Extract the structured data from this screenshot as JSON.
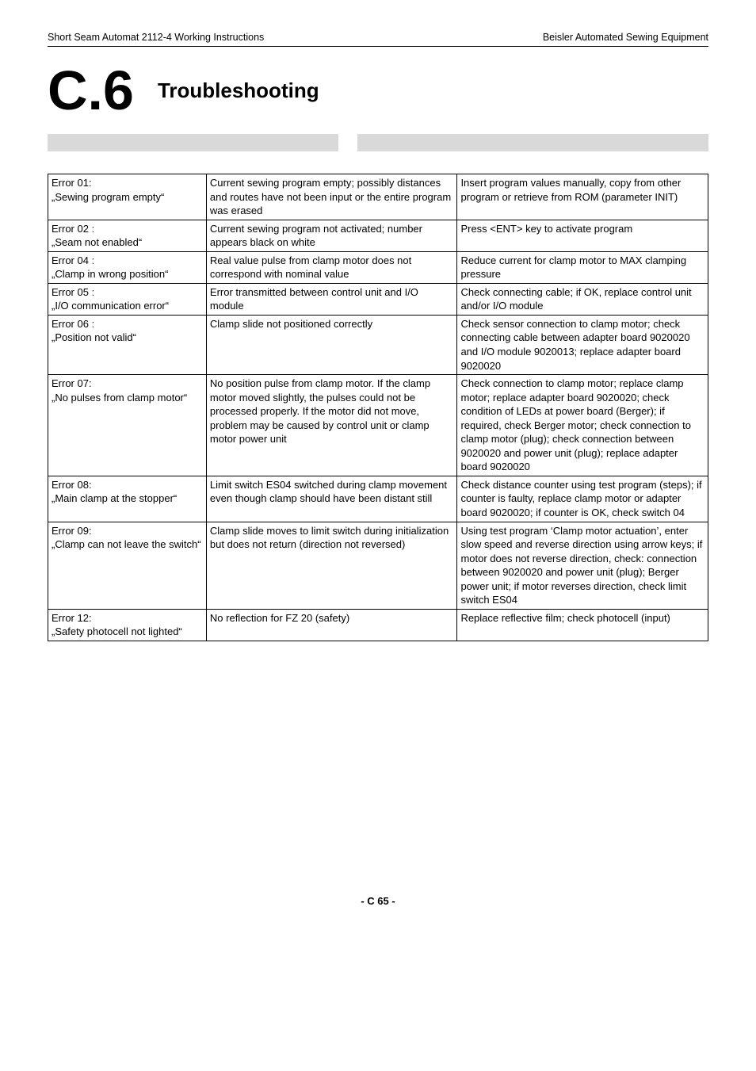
{
  "header": {
    "left": "Short Seam Automat 2112-4 Working Instructions",
    "right": "Beisler Automated Sewing Equipment"
  },
  "chapter": {
    "number": "C.6",
    "title": "Troubleshooting"
  },
  "table": {
    "col_widths_pct": [
      24,
      38,
      38
    ],
    "border_color": "#000000",
    "font_size_pt": 10,
    "rows": [
      {
        "error": "Error 01:\n„Sewing program empty“",
        "cause": "Current sewing program empty; possibly distances and routes have not been input or the entire program was erased",
        "remedy": "Insert program values manually, copy from other program or retrieve from ROM (parameter INIT)"
      },
      {
        "error": "Error 02 :\n„Seam not enabled“",
        "cause": "Current sewing program not activated; number appears black on white",
        "remedy": "Press <ENT> key to activate program"
      },
      {
        "error": "Error 04 :\n„Clamp in wrong position“",
        "cause": "Real value pulse from clamp motor does not correspond with nominal value",
        "remedy": "Reduce current for clamp motor to MAX clamping pressure"
      },
      {
        "error": "Error 05 :\n„I/O communication error“",
        "cause": "Error transmitted between control unit and I/O module",
        "remedy": "Check connecting cable; if OK, replace control unit and/or I/O module"
      },
      {
        "error": "Error 06 :\n„Position not valid“",
        "cause": "Clamp slide not positioned correctly",
        "remedy": "Check sensor connection to clamp motor; check connecting cable between adapter board 9020020 and I/O module 9020013; replace adapter board 9020020"
      },
      {
        "error": "Error 07:\n„No pulses from clamp motor“",
        "cause": "No position pulse from clamp motor. If the clamp motor moved slightly, the pulses could not be processed properly. If the motor did not move, problem may be caused by control unit or clamp motor power unit",
        "remedy": "Check connection to clamp motor; replace clamp motor; replace adapter board 9020020; check condition of LEDs at power board (Berger); if required, check Berger motor; check connection to clamp motor (plug); check connection between 9020020 and power unit (plug); replace adapter board 9020020"
      },
      {
        "error": "Error 08:\n„Main clamp at the stopper“",
        "cause": "Limit switch ES04 switched during clamp movement even though clamp should have been distant still",
        "remedy": "Check distance counter using test program (steps); if counter is faulty, replace clamp motor or adapter board 9020020; if counter is OK, check switch 04"
      },
      {
        "error": "Error 09:\n„Clamp can not leave the switch“",
        "cause": "Clamp slide moves to limit switch during initialization but does not return (direction not reversed)",
        "remedy": "Using test program ‘Clamp motor actuation’, enter slow speed and reverse direction using arrow keys; if motor does not reverse direction, check: connection between 9020020 and power unit (plug); Berger power unit; if motor reverses direction, check limit switch ES04"
      },
      {
        "error": "Error 12:\n„Safety photocell not lighted“",
        "cause": "No reflection for FZ 20 (safety)",
        "remedy": "Replace reflective film; check photocell (input)"
      }
    ]
  },
  "footer": {
    "text": "- C 65 -"
  },
  "colors": {
    "grey_bar": "#d9d9d9",
    "background": "#ffffff",
    "text": "#000000"
  }
}
